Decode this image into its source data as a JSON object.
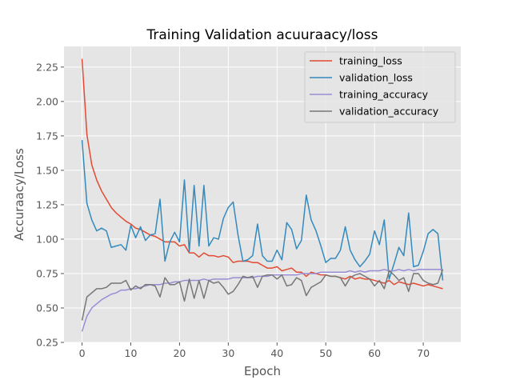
{
  "chart_data": {
    "type": "line",
    "title": "Training Validation acuuraacy/loss",
    "xlabel": "Epoch",
    "ylabel": "Accuraacy/Loss",
    "xlim": [
      -3.7,
      77.7
    ],
    "ylim": [
      0.25,
      2.4
    ],
    "x_ticks": [
      0,
      10,
      20,
      30,
      40,
      50,
      60,
      70
    ],
    "y_ticks": [
      0.25,
      0.5,
      0.75,
      1.0,
      1.25,
      1.5,
      1.75,
      2.0,
      2.25
    ],
    "y_tick_labels": [
      "0.25",
      "0.50",
      "0.75",
      "1.00",
      "1.25",
      "1.50",
      "1.75",
      "2.00",
      "2.25"
    ],
    "grid": true,
    "legend_position": "top-right",
    "x": [
      0,
      1,
      2,
      3,
      4,
      5,
      6,
      7,
      8,
      9,
      10,
      11,
      12,
      13,
      14,
      15,
      16,
      17,
      18,
      19,
      20,
      21,
      22,
      23,
      24,
      25,
      26,
      27,
      28,
      29,
      30,
      31,
      32,
      33,
      34,
      35,
      36,
      37,
      38,
      39,
      40,
      41,
      42,
      43,
      44,
      45,
      46,
      47,
      48,
      49,
      50,
      51,
      52,
      53,
      54,
      55,
      56,
      57,
      58,
      59,
      60,
      61,
      62,
      63,
      64,
      65,
      66,
      67,
      68,
      69,
      70,
      71,
      72,
      73,
      74
    ],
    "series": [
      {
        "name": "training_loss",
        "color": "#e24a33",
        "values": [
          2.31,
          1.76,
          1.54,
          1.43,
          1.35,
          1.29,
          1.23,
          1.19,
          1.16,
          1.13,
          1.11,
          1.08,
          1.07,
          1.05,
          1.03,
          1.02,
          1.0,
          0.98,
          0.98,
          0.98,
          0.95,
          0.96,
          0.9,
          0.9,
          0.87,
          0.9,
          0.88,
          0.88,
          0.87,
          0.88,
          0.87,
          0.83,
          0.84,
          0.84,
          0.84,
          0.83,
          0.83,
          0.81,
          0.79,
          0.79,
          0.8,
          0.77,
          0.78,
          0.79,
          0.76,
          0.76,
          0.73,
          0.76,
          0.75,
          0.74,
          0.74,
          0.73,
          0.73,
          0.72,
          0.71,
          0.73,
          0.71,
          0.72,
          0.71,
          0.71,
          0.7,
          0.69,
          0.68,
          0.7,
          0.67,
          0.69,
          0.68,
          0.67,
          0.68,
          0.67,
          0.66,
          0.67,
          0.66,
          0.65,
          0.64
        ]
      },
      {
        "name": "validation_loss",
        "color": "#348abd",
        "values": [
          1.72,
          1.26,
          1.14,
          1.06,
          1.08,
          1.06,
          0.94,
          0.95,
          0.96,
          0.92,
          1.1,
          1.01,
          1.09,
          0.99,
          1.03,
          1.04,
          1.29,
          0.84,
          0.98,
          1.05,
          0.98,
          1.43,
          0.91,
          1.39,
          0.95,
          1.39,
          0.95,
          1.01,
          1.0,
          1.15,
          1.23,
          1.27,
          1.03,
          0.84,
          0.85,
          0.88,
          1.11,
          0.88,
          0.84,
          0.84,
          0.92,
          0.85,
          1.12,
          1.07,
          0.93,
          0.99,
          1.32,
          1.14,
          1.06,
          0.95,
          0.83,
          0.86,
          0.86,
          0.92,
          1.09,
          0.92,
          0.85,
          0.8,
          0.84,
          0.89,
          1.06,
          0.96,
          1.14,
          0.71,
          0.82,
          0.94,
          0.88,
          1.19,
          0.8,
          0.81,
          0.91,
          1.04,
          1.07,
          1.04,
          0.7
        ]
      },
      {
        "name": "training_accuracy",
        "color": "#988ed5",
        "values": [
          0.33,
          0.44,
          0.5,
          0.53,
          0.56,
          0.58,
          0.6,
          0.61,
          0.63,
          0.63,
          0.64,
          0.64,
          0.65,
          0.66,
          0.67,
          0.67,
          0.67,
          0.68,
          0.68,
          0.69,
          0.69,
          0.7,
          0.7,
          0.7,
          0.7,
          0.71,
          0.7,
          0.71,
          0.71,
          0.71,
          0.71,
          0.72,
          0.72,
          0.72,
          0.72,
          0.72,
          0.73,
          0.73,
          0.73,
          0.74,
          0.74,
          0.74,
          0.74,
          0.74,
          0.74,
          0.75,
          0.75,
          0.75,
          0.75,
          0.76,
          0.76,
          0.76,
          0.76,
          0.76,
          0.76,
          0.77,
          0.76,
          0.77,
          0.76,
          0.77,
          0.77,
          0.77,
          0.78,
          0.77,
          0.77,
          0.78,
          0.77,
          0.78,
          0.77,
          0.78,
          0.78,
          0.78,
          0.78,
          0.78,
          0.78
        ]
      },
      {
        "name": "validation_accuracy",
        "color": "#777777",
        "values": [
          0.41,
          0.58,
          0.61,
          0.64,
          0.64,
          0.65,
          0.68,
          0.68,
          0.68,
          0.7,
          0.63,
          0.66,
          0.64,
          0.67,
          0.67,
          0.66,
          0.58,
          0.72,
          0.67,
          0.67,
          0.69,
          0.55,
          0.71,
          0.57,
          0.7,
          0.57,
          0.7,
          0.68,
          0.69,
          0.65,
          0.6,
          0.62,
          0.67,
          0.73,
          0.72,
          0.73,
          0.65,
          0.73,
          0.74,
          0.74,
          0.71,
          0.74,
          0.66,
          0.67,
          0.72,
          0.7,
          0.59,
          0.65,
          0.67,
          0.69,
          0.74,
          0.73,
          0.73,
          0.72,
          0.66,
          0.72,
          0.74,
          0.75,
          0.73,
          0.71,
          0.66,
          0.7,
          0.64,
          0.77,
          0.74,
          0.7,
          0.72,
          0.62,
          0.75,
          0.75,
          0.7,
          0.68,
          0.67,
          0.68,
          0.78
        ]
      }
    ]
  }
}
